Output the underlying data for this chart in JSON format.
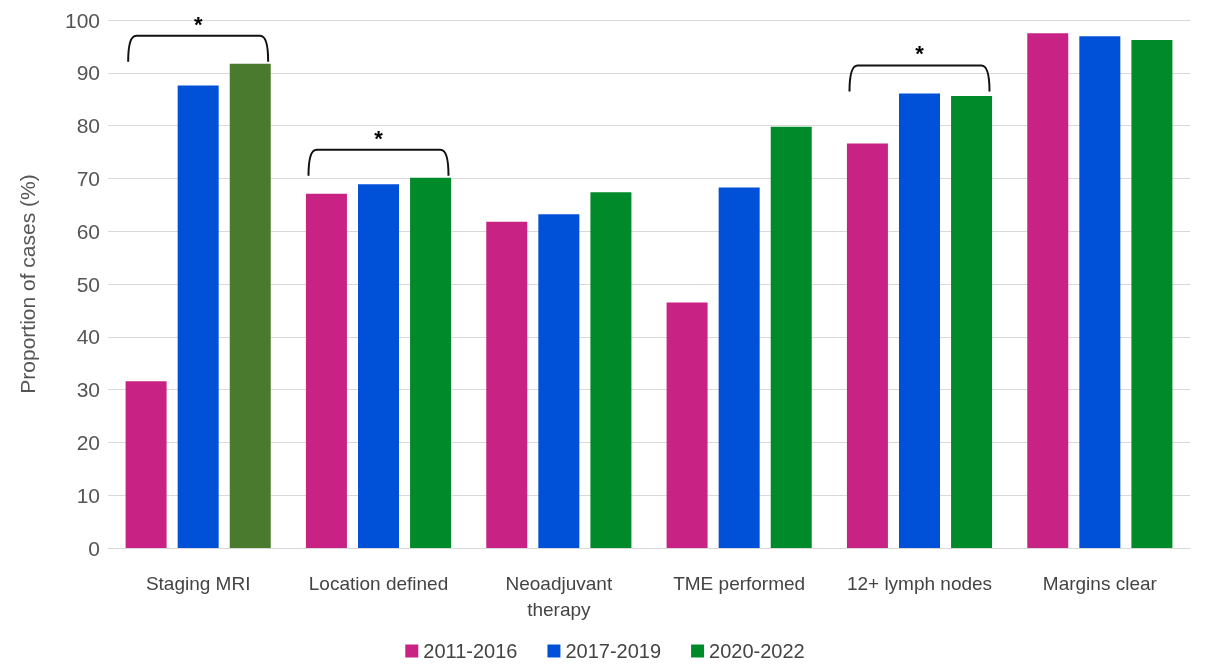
{
  "chart_data": {
    "type": "bar",
    "ylabel": "Proportion of cases (%)",
    "categories": [
      "Staging MRI",
      "Location defined",
      "Neoadjuvant\ntherapy",
      "TME performed",
      "12+ lymph nodes",
      "Margins clear"
    ],
    "series": [
      {
        "name": "2011-2016",
        "color": "#c82384",
        "values": [
          31.6,
          67.1,
          61.8,
          46.5,
          76.6,
          97.5
        ]
      },
      {
        "name": "2017-2019",
        "color": "#0050d8",
        "values": [
          87.6,
          68.9,
          63.2,
          68.3,
          86.1,
          96.9
        ]
      },
      {
        "name": "2020-2022",
        "color": "#008a2a",
        "colors": [
          "#4a7a2e",
          "#008a2a",
          "#008a2a",
          "#008a2a",
          "#008a2a",
          "#008a2a"
        ],
        "values": [
          91.7,
          70.1,
          67.4,
          79.8,
          85.6,
          96.2
        ]
      }
    ],
    "ylim": [
      0,
      100
    ],
    "yticks": [
      0,
      10,
      20,
      30,
      40,
      50,
      60,
      70,
      80,
      90,
      100
    ],
    "grid": "y",
    "legend": "bottom",
    "annotations": [
      "*",
      "*",
      "*"
    ]
  }
}
